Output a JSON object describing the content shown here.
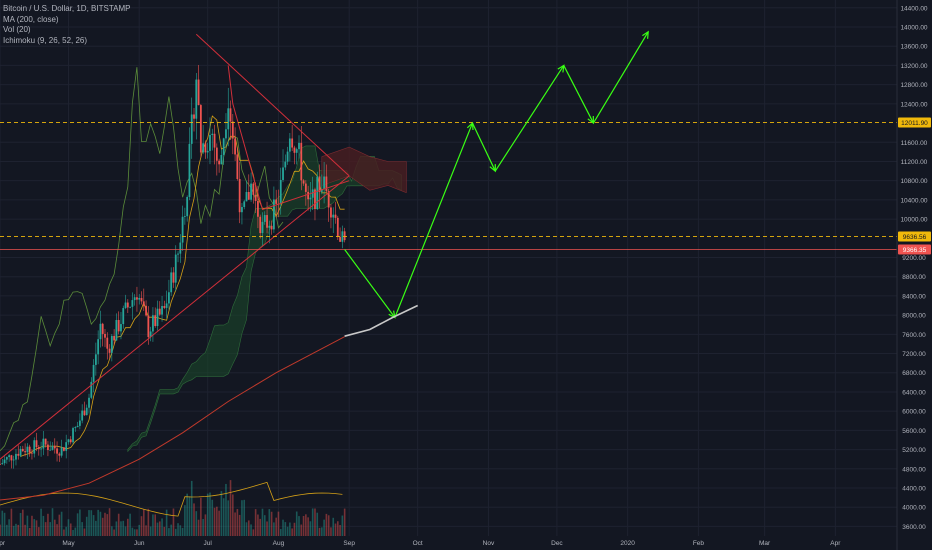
{
  "legend": {
    "title": "Bitcoin / U.S. Dollar, 1D, BITSTAMP",
    "ma": "MA (200, close)",
    "vol": "Vol (20)",
    "ichimoku": "Ichimoku (9, 26, 52, 26)"
  },
  "colors": {
    "background": "#131722",
    "axis_text": "#b2b5be",
    "grid": "#1e2230",
    "candle_up": "#26a69a",
    "candle_down": "#ef5350",
    "ma200": "#c0392b",
    "ma_fast": "#d4a017",
    "ichimoku_lagging": "#5b8c3a",
    "cloud_bull": "#1c4a2a",
    "cloud_bear": "#4a1e22",
    "triangle": "#d12f3a",
    "projection": "#39ff14",
    "hline": "#f0b90b",
    "price_red": "#ef5350",
    "curve": "#c8c8c8"
  },
  "chart_data": {
    "type": "candlestick",
    "title": "Bitcoin / U.S. Dollar, 1D, BITSTAMP",
    "xlabel": "",
    "ylabel": "",
    "y_ticks": [
      3600,
      4000,
      4400,
      4800,
      5200,
      5600,
      6000,
      6400,
      6800,
      7200,
      7600,
      8000,
      8400,
      8800,
      9200,
      10000,
      10400,
      10800,
      11200,
      11600,
      12400,
      12800,
      13200,
      13600,
      14000,
      14400
    ],
    "y_tick_labels": [
      "3600.00",
      "4000.00",
      "4400.00",
      "4800.00",
      "5200.00",
      "5600.00",
      "6000.00",
      "6400.00",
      "6800.00",
      "7200.00",
      "7600.00",
      "8000.00",
      "8400.00",
      "8800.00",
      "9200.00",
      "10000.00",
      "10400.00",
      "10800.00",
      "11200.00",
      "11600.00",
      "12400.00",
      "12800.00",
      "13200.00",
      "13600.00",
      "14000.00",
      "14400.00"
    ],
    "ylim": [
      3400,
      14500
    ],
    "x_ticks": [
      "Apr",
      "May",
      "Jun",
      "Jul",
      "Aug",
      "Sep",
      "Oct",
      "Nov",
      "Dec",
      "2020",
      "Feb",
      "Mar",
      "Apr"
    ],
    "xlim": [
      "2019-04-01",
      "2020-04-28"
    ],
    "price_labels": [
      {
        "value": 12011.9,
        "label": "12011.90",
        "style": "horizontal-dashed-line"
      },
      {
        "value": 9636.56,
        "label": "9636.56",
        "style": "horizontal-dashed-line"
      },
      {
        "value": 9366.35,
        "label": "9366.35",
        "style": "current-price"
      }
    ],
    "price_path": [
      [
        "2019-04-01",
        4900
      ],
      [
        "2019-04-10",
        5200
      ],
      [
        "2019-04-20",
        5300
      ],
      [
        "2019-04-28",
        5200
      ],
      [
        "2019-05-05",
        5700
      ],
      [
        "2019-05-10",
        6300
      ],
      [
        "2019-05-15",
        7800
      ],
      [
        "2019-05-18",
        7300
      ],
      [
        "2019-05-25",
        8000
      ],
      [
        "2019-05-31",
        8500
      ],
      [
        "2019-06-05",
        7700
      ],
      [
        "2019-06-12",
        8100
      ],
      [
        "2019-06-18",
        9300
      ],
      [
        "2019-06-22",
        10700
      ],
      [
        "2019-06-26",
        13000
      ],
      [
        "2019-06-28",
        11500
      ],
      [
        "2019-07-03",
        11800
      ],
      [
        "2019-07-06",
        11000
      ],
      [
        "2019-07-10",
        12600
      ],
      [
        "2019-07-16",
        10000
      ],
      [
        "2019-07-20",
        10700
      ],
      [
        "2019-07-25",
        9800
      ],
      [
        "2019-07-31",
        10200
      ],
      [
        "2019-08-03",
        10900
      ],
      [
        "2019-08-06",
        11900
      ],
      [
        "2019-08-10",
        11300
      ],
      [
        "2019-08-14",
        10200
      ],
      [
        "2019-08-20",
        10800
      ],
      [
        "2019-08-25",
        10200
      ],
      [
        "2019-08-28",
        9650
      ],
      [
        "2019-08-30",
        9366
      ]
    ],
    "ma200_path": [
      [
        "2019-04-01",
        4150
      ],
      [
        "2019-04-20",
        4250
      ],
      [
        "2019-05-10",
        4500
      ],
      [
        "2019-06-01",
        5000
      ],
      [
        "2019-06-20",
        5550
      ],
      [
        "2019-07-10",
        6200
      ],
      [
        "2019-07-31",
        6800
      ],
      [
        "2019-08-20",
        7300
      ],
      [
        "2019-08-30",
        7550
      ]
    ],
    "projection": [
      [
        "2019-08-30",
        9366
      ],
      [
        "2019-09-21",
        7950
      ],
      [
        "2019-10-25",
        12000
      ],
      [
        "2019-11-04",
        11000
      ],
      [
        "2019-12-04",
        13200
      ],
      [
        "2019-12-17",
        12000
      ],
      [
        "2020-01-10",
        13900
      ]
    ],
    "extension_curve": [
      [
        "2019-08-30",
        7560
      ],
      [
        "2019-09-10",
        7700
      ],
      [
        "2019-09-20",
        7950
      ],
      [
        "2019-10-01",
        8200
      ]
    ],
    "triangle_upper": [
      [
        "2019-06-26",
        13850
      ],
      [
        "2019-09-01",
        10900
      ]
    ],
    "triangle_lower": [
      [
        "2019-04-01",
        5000
      ],
      [
        "2019-09-01",
        10900
      ]
    ],
    "triangle_inner": [
      [
        "2019-07-10",
        13200
      ],
      [
        "2019-07-12",
        12400
      ],
      [
        "2019-07-25",
        10200
      ],
      [
        "2019-09-01",
        10800
      ]
    ]
  }
}
